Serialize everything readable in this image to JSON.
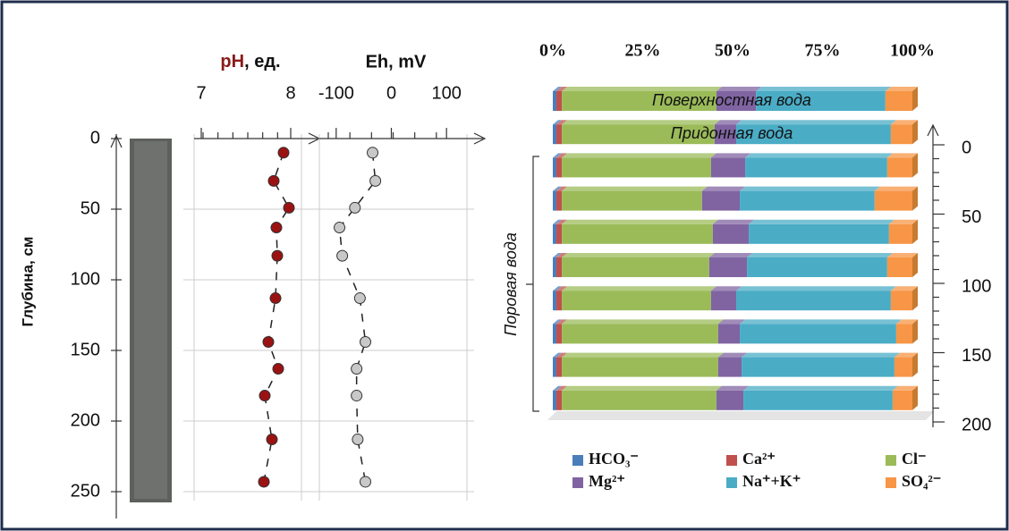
{
  "chart_data": [
    {
      "type": "profile",
      "title": "pH, ед.",
      "title_color": "#8b1a1a",
      "ylabel": "Глубина, см",
      "y": [
        10,
        30,
        49,
        63,
        83,
        113,
        144,
        163,
        182,
        213,
        243
      ],
      "x": [
        7.92,
        7.81,
        7.98,
        7.84,
        7.85,
        7.83,
        7.75,
        7.86,
        7.71,
        7.79,
        7.7
      ],
      "color": "#9b1212",
      "xlim": [
        6.8,
        8.2
      ],
      "xticks": [
        7,
        8
      ],
      "ylim": [
        0,
        250
      ],
      "yticks": [
        0,
        50,
        100,
        150,
        200,
        250
      ],
      "grid": true
    },
    {
      "type": "profile",
      "title": "Eh, mV",
      "y": [
        10,
        30,
        49,
        63,
        83,
        113,
        144,
        163,
        182,
        213,
        243
      ],
      "x": [
        -34,
        -29,
        -66,
        -94,
        -89,
        -57,
        -47,
        -63,
        -63,
        -61,
        -47
      ],
      "color": "#c8c8c8",
      "xlim": [
        -150,
        150
      ],
      "xticks": [
        -100,
        0,
        100
      ],
      "ylim": [
        0,
        250
      ],
      "grid": true
    },
    {
      "type": "bar",
      "orientation": "horizontal",
      "stacked": true,
      "categories": [
        "Поверхностная вода",
        "Придонная вода",
        null,
        null,
        null,
        null,
        null,
        null,
        null,
        null
      ],
      "annotation": "Поровая вода",
      "xlim": [
        0,
        100
      ],
      "xticks": [
        {
          "value": 0,
          "label": "0%"
        },
        {
          "value": 25,
          "label": "25%"
        },
        {
          "value": 50,
          "label": "50%"
        },
        {
          "value": 75,
          "label": "75%"
        },
        {
          "value": 100,
          "label": "100%"
        }
      ],
      "y2lim": [
        0,
        200
      ],
      "y2ticks": [
        0,
        50,
        100,
        150,
        200
      ],
      "series": [
        {
          "name": "HCO₃⁻",
          "color": "#4a7ebb",
          "values": [
            1,
            1,
            1,
            1,
            1,
            1,
            1,
            1,
            1,
            1
          ]
        },
        {
          "name": "Ca²⁺",
          "color": "#c0504d",
          "values": [
            1.5,
            1.5,
            1.5,
            1.5,
            1.5,
            1.5,
            1.5,
            1.5,
            1.5,
            1.5
          ]
        },
        {
          "name": "Cl⁻",
          "color": "#9bbb59",
          "values": [
            43,
            42.5,
            41.5,
            39,
            42,
            41,
            41.5,
            43.5,
            43.5,
            43
          ]
        },
        {
          "name": "Mg²⁺",
          "color": "#8064a2",
          "values": [
            11,
            6,
            9.5,
            10.5,
            10,
            10.5,
            7,
            6,
            6.5,
            7.5
          ]
        },
        {
          "name": "Na⁺+K⁺",
          "color": "#4bacc6",
          "values": [
            36,
            43,
            39.5,
            37.5,
            39,
            39,
            43,
            43.5,
            42.5,
            41.5
          ]
        },
        {
          "name": "SO₄²⁻",
          "color": "#f79646",
          "values": [
            7.5,
            6,
            7,
            10.5,
            6.5,
            7,
            6,
            4.5,
            5,
            5.5
          ]
        }
      ]
    }
  ]
}
